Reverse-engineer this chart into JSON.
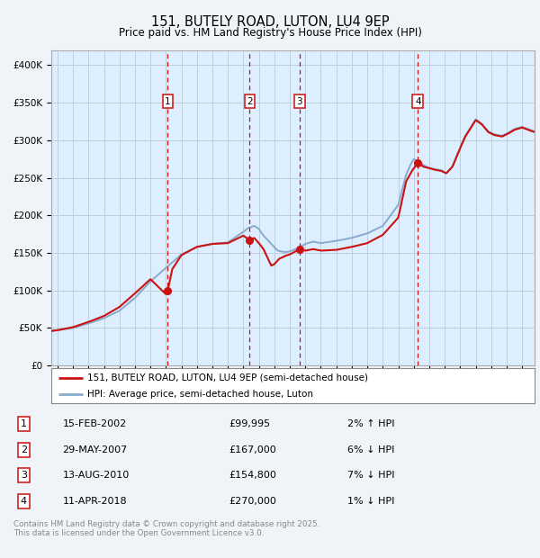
{
  "title": "151, BUTELY ROAD, LUTON, LU4 9EP",
  "subtitle": "Price paid vs. HM Land Registry's House Price Index (HPI)",
  "ylim": [
    0,
    420000
  ],
  "yticks": [
    0,
    50000,
    100000,
    150000,
    200000,
    250000,
    300000,
    350000,
    400000
  ],
  "ytick_labels": [
    "£0",
    "£50K",
    "£100K",
    "£150K",
    "£200K",
    "£250K",
    "£300K",
    "£350K",
    "£400K"
  ],
  "xlim_start": 1994.6,
  "xlim_end": 2025.8,
  "background_chart": "#ddeeff",
  "background_fig": "#f0f4f8",
  "grid_color": "#c0cfe0",
  "sale_line_color": "#cc1111",
  "hpi_line_color": "#88aacc",
  "sale_dot_color": "#cc1111",
  "vline_color": "#cc1111",
  "marker_box_color": "#cc1111",
  "purchases": [
    {
      "num": 1,
      "date_year": 2002.12,
      "price": 99995,
      "label": "1"
    },
    {
      "num": 2,
      "date_year": 2007.41,
      "price": 167000,
      "label": "2"
    },
    {
      "num": 3,
      "date_year": 2010.62,
      "price": 154800,
      "label": "3"
    },
    {
      "num": 4,
      "date_year": 2018.27,
      "price": 270000,
      "label": "4"
    }
  ],
  "legend1_text": "151, BUTELY ROAD, LUTON, LU4 9EP (semi-detached house)",
  "legend2_text": "HPI: Average price, semi-detached house, Luton",
  "table_entries": [
    {
      "num": "1",
      "date": "15-FEB-2002",
      "price": "£99,995",
      "hpi": "2% ↑ HPI"
    },
    {
      "num": "2",
      "date": "29-MAY-2007",
      "price": "£167,000",
      "hpi": "6% ↓ HPI"
    },
    {
      "num": "3",
      "date": "13-AUG-2010",
      "price": "£154,800",
      "hpi": "7% ↓ HPI"
    },
    {
      "num": "4",
      "date": "11-APR-2018",
      "price": "£270,000",
      "hpi": "1% ↓ HPI"
    }
  ],
  "footer_text": "Contains HM Land Registry data © Crown copyright and database right 2025.\nThis data is licensed under the Open Government Licence v3.0."
}
